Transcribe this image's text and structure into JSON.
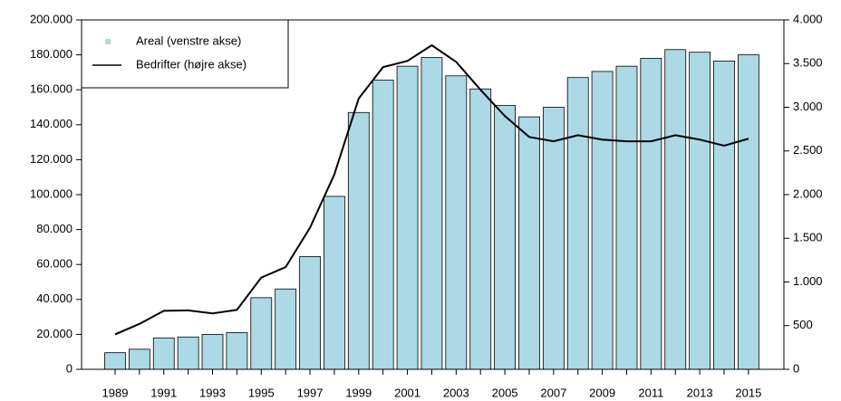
{
  "chart_data": {
    "type": "bar-line",
    "categories": [
      "1989",
      null,
      "1991",
      null,
      "1993",
      null,
      "1995",
      null,
      "1997",
      null,
      "1999",
      null,
      "2001",
      null,
      "2003",
      null,
      "2005",
      null,
      "2007",
      null,
      "2009",
      null,
      "2011",
      null,
      "2013",
      null,
      "2015"
    ],
    "series": [
      {
        "name": "Areal (venstre akse)",
        "color": "#add8e6",
        "type": "bar",
        "values": [
          9500,
          11500,
          18000,
          18500,
          20000,
          21000,
          41000,
          46000,
          64500,
          99000,
          147000,
          165500,
          173500,
          178500,
          168000,
          160500,
          151000,
          144500,
          150000,
          167000,
          170500,
          173500,
          178000,
          183000,
          181500,
          176500,
          180000
        ]
      },
      {
        "name": "Bedrifter (højre akse)",
        "color": "#000000",
        "type": "line",
        "axis": "y2",
        "values": [
          400,
          520,
          670,
          675,
          640,
          680,
          1050,
          1170,
          1620,
          2230,
          3100,
          3460,
          3530,
          3710,
          3520,
          3200,
          2900,
          2660,
          2610,
          2680,
          2630,
          2610,
          2610,
          2680,
          2630,
          2560,
          2640
        ]
      }
    ],
    "ylim": [
      0,
      200000
    ],
    "yticks": [
      0,
      {
        "value": 20000,
        "label": "20.000"
      },
      {
        "value": 40000,
        "label": "40.000"
      },
      {
        "value": 60000,
        "label": "60.000"
      },
      {
        "value": 80000,
        "label": "80.000"
      },
      {
        "value": 100000,
        "label": "100.000"
      },
      {
        "value": 120000,
        "label": "120.000"
      },
      {
        "value": 140000,
        "label": "140.000"
      },
      {
        "value": 160000,
        "label": "160.000"
      },
      {
        "value": 180000,
        "label": "180.000"
      },
      {
        "value": 200000,
        "label": "200.000"
      }
    ],
    "y2lim": [
      0,
      4000
    ],
    "y2ticks": [
      0,
      500,
      {
        "value": 1000,
        "label": "1.000"
      },
      {
        "value": 1500,
        "label": "1.500"
      },
      {
        "value": 2000,
        "label": "2.000"
      },
      {
        "value": 2500,
        "label": "2.500"
      },
      {
        "value": 3000,
        "label": "3.000"
      },
      {
        "value": 3500,
        "label": "3.500"
      },
      {
        "value": 4000,
        "label": "4.000"
      }
    ],
    "legend": "top-left"
  }
}
